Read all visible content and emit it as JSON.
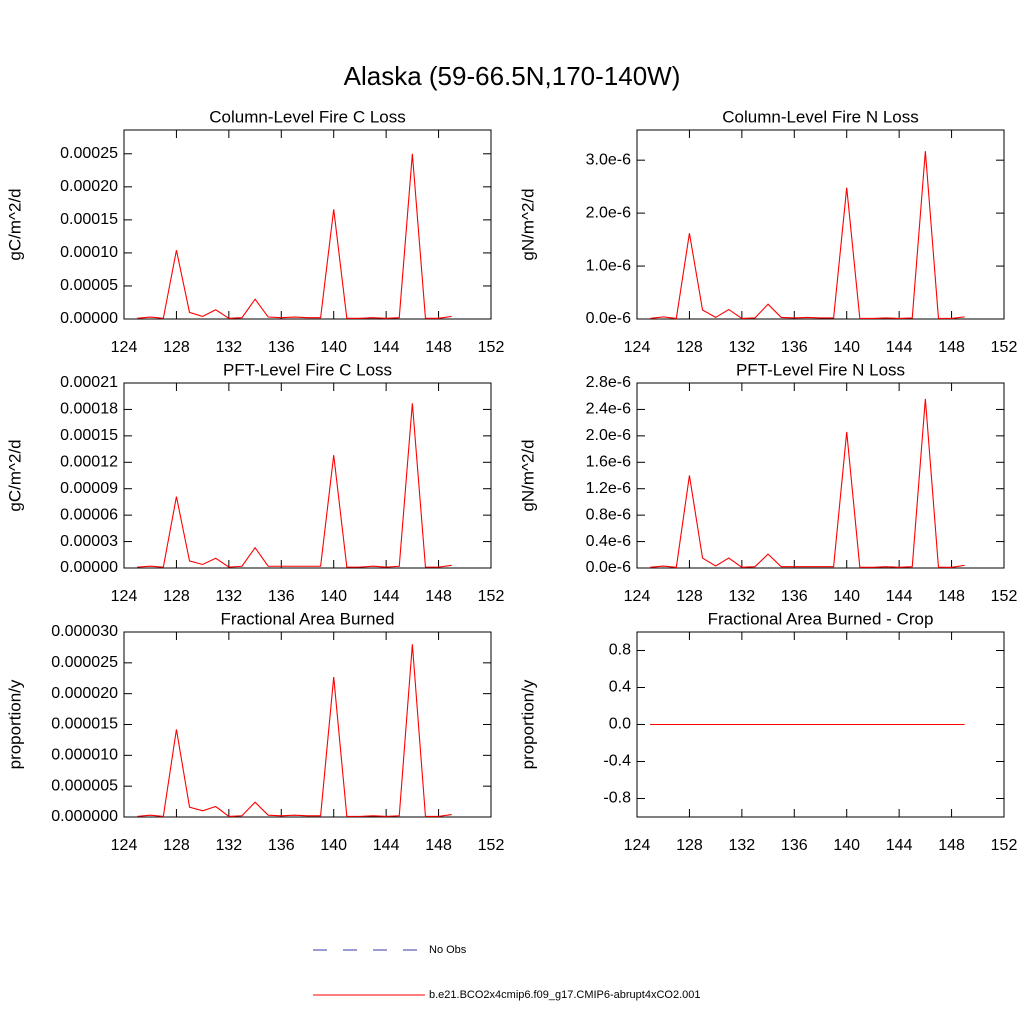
{
  "title": "Alaska (59-66.5N,170-140W)",
  "legend": [
    {
      "name": "No Obs",
      "color": "#3a3aa8",
      "dash": true
    },
    {
      "name": "b.e21.BCO2x4cmip6.f09_g17.CMIP6-abrupt4xCO2.001",
      "color": "#ff0000",
      "dash": false
    }
  ],
  "chart_data": [
    {
      "type": "line",
      "title": "Column-Level Fire C Loss",
      "y_label": "gC/m^2/d",
      "x": [
        125,
        126,
        127,
        128,
        129,
        130,
        131,
        132,
        133,
        134,
        135,
        136,
        137,
        138,
        139,
        140,
        141,
        142,
        143,
        144,
        145,
        146,
        147,
        148,
        149
      ],
      "xlim": [
        124,
        152
      ],
      "xticks": [
        124,
        128,
        132,
        136,
        140,
        144,
        148,
        152
      ],
      "ylim": [
        0,
        0.000286
      ],
      "yticks": [
        {
          "value": 0,
          "label": "0.00000"
        },
        5e-05,
        {
          "value": 0.0001,
          "label": "0.00010"
        },
        0.00015,
        {
          "value": 0.0002,
          "label": "0.00020"
        },
        0.00025
      ],
      "series": [
        {
          "color": "#ff0000",
          "values": [
            1e-06,
            3e-06,
            1e-06,
            0.000104,
            1e-05,
            4e-06,
            1.4e-05,
            1e-06,
            2e-06,
            3e-05,
            3e-06,
            2e-06,
            3e-06,
            2e-06,
            2e-06,
            0.000166,
            1e-06,
            1e-06,
            2e-06,
            1e-06,
            2e-06,
            0.00025,
            1e-06,
            1e-06,
            4e-06
          ]
        }
      ]
    },
    {
      "type": "line",
      "title": "Column-Level Fire N Loss",
      "y_label": "gN/m^2/d",
      "x": [
        125,
        126,
        127,
        128,
        129,
        130,
        131,
        132,
        133,
        134,
        135,
        136,
        137,
        138,
        139,
        140,
        141,
        142,
        143,
        144,
        145,
        146,
        147,
        148,
        149
      ],
      "xlim": [
        124,
        152
      ],
      "xticks": [
        124,
        128,
        132,
        136,
        140,
        144,
        148,
        152
      ],
      "ylim": [
        0,
        3.57e-06
      ],
      "yticks": [
        {
          "value": 0,
          "label": "0.0e-6"
        },
        {
          "value": 1e-06,
          "label": "1.0e-6"
        },
        {
          "value": 2e-06,
          "label": "2.0e-6"
        },
        {
          "value": 3e-06,
          "label": "3.0e-6"
        }
      ],
      "series": [
        {
          "color": "#ff0000",
          "values": [
            1e-08,
            4e-08,
            1e-08,
            1.62e-06,
            1.7e-07,
            3e-08,
            1.8e-07,
            1e-08,
            2e-08,
            2.8e-07,
            3e-08,
            2e-08,
            3e-08,
            2e-08,
            2e-08,
            2.48e-06,
            1e-08,
            1e-08,
            2e-08,
            1e-08,
            2e-08,
            3.17e-06,
            1e-08,
            1e-08,
            4e-08
          ]
        }
      ]
    },
    {
      "type": "line",
      "title": "PFT-Level Fire C Loss",
      "y_label": "gC/m^2/d",
      "x": [
        125,
        126,
        127,
        128,
        129,
        130,
        131,
        132,
        133,
        134,
        135,
        136,
        137,
        138,
        139,
        140,
        141,
        142,
        143,
        144,
        145,
        146,
        147,
        148,
        149
      ],
      "xlim": [
        124,
        152
      ],
      "xticks": [
        124,
        128,
        132,
        136,
        140,
        144,
        148,
        152
      ],
      "ylim": [
        0,
        0.00021
      ],
      "yticks": [
        {
          "value": 0,
          "label": "0.00000"
        },
        3e-05,
        6e-05,
        9e-05,
        0.00012,
        0.00015,
        0.00018,
        0.00021
      ],
      "series": [
        {
          "color": "#ff0000",
          "values": [
            1e-06,
            2e-06,
            1e-06,
            8.1e-05,
            8e-06,
            4e-06,
            1.1e-05,
            1e-06,
            2e-06,
            2.3e-05,
            2e-06,
            2e-06,
            2e-06,
            2e-06,
            2e-06,
            0.000128,
            1e-06,
            1e-06,
            2e-06,
            1e-06,
            2e-06,
            0.000187,
            1e-06,
            1e-06,
            3e-06
          ]
        }
      ]
    },
    {
      "type": "line",
      "title": "PFT-Level Fire N Loss",
      "y_label": "gN/m^2/d",
      "x": [
        125,
        126,
        127,
        128,
        129,
        130,
        131,
        132,
        133,
        134,
        135,
        136,
        137,
        138,
        139,
        140,
        141,
        142,
        143,
        144,
        145,
        146,
        147,
        148,
        149
      ],
      "xlim": [
        124,
        152
      ],
      "xticks": [
        124,
        128,
        132,
        136,
        140,
        144,
        148,
        152
      ],
      "ylim": [
        0,
        2.8e-06
      ],
      "yticks": [
        {
          "value": 0,
          "label": "0.0e-6"
        },
        {
          "value": 4e-07,
          "label": "0.4e-6"
        },
        {
          "value": 8e-07,
          "label": "0.8e-6"
        },
        {
          "value": 1.2e-06,
          "label": "1.2e-6"
        },
        {
          "value": 1.6e-06,
          "label": "1.6e-6"
        },
        {
          "value": 2e-06,
          "label": "2.0e-6"
        },
        {
          "value": 2.4e-06,
          "label": "2.4e-6"
        },
        {
          "value": 2.8e-06,
          "label": "2.8e-6"
        }
      ],
      "series": [
        {
          "color": "#ff0000",
          "values": [
            1e-08,
            3e-08,
            1e-08,
            1.4e-06,
            1.5e-07,
            3e-08,
            1.5e-07,
            1e-08,
            2e-08,
            2.1e-07,
            2e-08,
            2e-08,
            2e-08,
            2e-08,
            2e-08,
            2.06e-06,
            1e-08,
            1e-08,
            2e-08,
            1e-08,
            2e-08,
            2.56e-06,
            1e-08,
            1e-08,
            4e-08
          ]
        }
      ]
    },
    {
      "type": "line",
      "title": "Fractional Area Burned",
      "y_label": "proportion/y",
      "x": [
        125,
        126,
        127,
        128,
        129,
        130,
        131,
        132,
        133,
        134,
        135,
        136,
        137,
        138,
        139,
        140,
        141,
        142,
        143,
        144,
        145,
        146,
        147,
        148,
        149
      ],
      "xlim": [
        124,
        152
      ],
      "xticks": [
        124,
        128,
        132,
        136,
        140,
        144,
        148,
        152
      ],
      "ylim": [
        0,
        3e-05
      ],
      "yticks": [
        {
          "value": 0,
          "label": "0.000000"
        },
        5e-06,
        {
          "value": 1e-05,
          "label": "0.000010"
        },
        1.5e-05,
        {
          "value": 2e-05,
          "label": "0.000020"
        },
        2.5e-05,
        {
          "value": 3e-05,
          "label": "0.000030"
        }
      ],
      "series": [
        {
          "color": "#ff0000",
          "values": [
            1e-07,
            3e-07,
            1e-07,
            1.42e-05,
            1.6e-06,
            1e-06,
            1.7e-06,
            1e-07,
            2e-07,
            2.4e-06,
            3e-07,
            2e-07,
            3e-07,
            2e-07,
            2e-07,
            2.27e-05,
            1e-07,
            1e-07,
            2e-07,
            1e-07,
            2e-07,
            2.8e-05,
            1e-07,
            1e-07,
            4e-07
          ]
        }
      ]
    },
    {
      "type": "line",
      "title": "Fractional Area Burned - Crop",
      "y_label": "proportion/y",
      "x": [
        125,
        126,
        127,
        128,
        129,
        130,
        131,
        132,
        133,
        134,
        135,
        136,
        137,
        138,
        139,
        140,
        141,
        142,
        143,
        144,
        145,
        146,
        147,
        148,
        149
      ],
      "xlim": [
        124,
        152
      ],
      "xticks": [
        124,
        128,
        132,
        136,
        140,
        144,
        148,
        152
      ],
      "ylim": [
        -1,
        1
      ],
      "yticks": [
        -0.8,
        -0.4,
        {
          "value": 0,
          "label": "0.0"
        },
        0.4,
        0.8
      ],
      "series": [
        {
          "color": "#ff0000",
          "values": [
            0,
            0,
            0,
            0,
            0,
            0,
            0,
            0,
            0,
            0,
            0,
            0,
            0,
            0,
            0,
            0,
            0,
            0,
            0,
            0,
            0,
            0,
            0,
            0,
            0
          ]
        }
      ]
    }
  ]
}
